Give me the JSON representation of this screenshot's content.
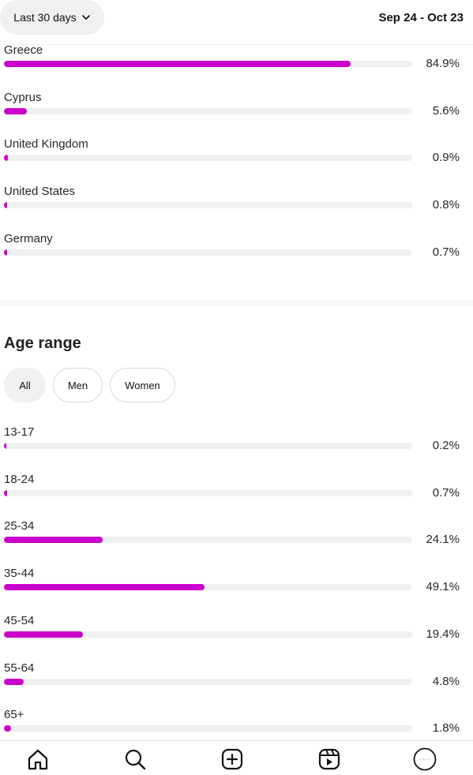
{
  "header": {
    "range_label": "Last 30 days",
    "date_range": "Sep 24 - Oct 23"
  },
  "colors": {
    "accent": "#cc00cc",
    "track": "#eff0f2"
  },
  "locations": [
    {
      "label": "Greece",
      "value": "84.9%",
      "fraction": 0.849
    },
    {
      "label": "Cyprus",
      "value": "5.6%",
      "fraction": 0.056
    },
    {
      "label": "United Kingdom",
      "value": "0.9%",
      "fraction": 0.009
    },
    {
      "label": "United States",
      "value": "0.8%",
      "fraction": 0.008
    },
    {
      "label": "Germany",
      "value": "0.7%",
      "fraction": 0.007
    }
  ],
  "age": {
    "title": "Age range",
    "filters": [
      {
        "label": "All",
        "active": true
      },
      {
        "label": "Men",
        "active": false
      },
      {
        "label": "Women",
        "active": false
      }
    ],
    "rows": [
      {
        "label": "13-17",
        "value": "0.2%",
        "fraction": 0.002
      },
      {
        "label": "18-24",
        "value": "0.7%",
        "fraction": 0.007
      },
      {
        "label": "25-34",
        "value": "24.1%",
        "fraction": 0.241
      },
      {
        "label": "35-44",
        "value": "49.1%",
        "fraction": 0.491
      },
      {
        "label": "45-54",
        "value": "19.4%",
        "fraction": 0.194
      },
      {
        "label": "55-64",
        "value": "4.8%",
        "fraction": 0.048
      },
      {
        "label": "65+",
        "value": "1.8%",
        "fraction": 0.018
      }
    ]
  },
  "nav": [
    "home-icon",
    "search-icon",
    "create-icon",
    "reels-icon",
    "profile-avatar"
  ]
}
